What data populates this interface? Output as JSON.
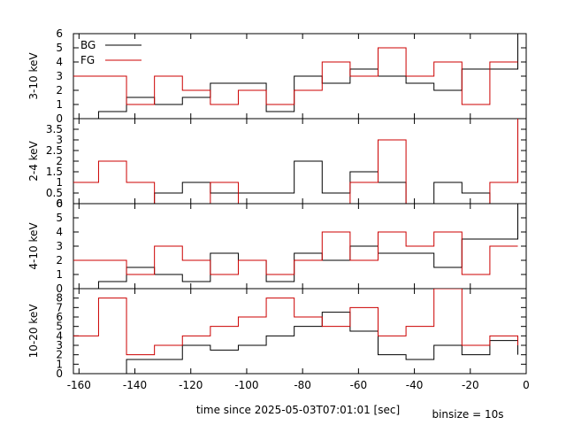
{
  "chart_data": {
    "type": "line",
    "step": true,
    "xlabel": "time since 2025-05-03T07:01:01 [sec]",
    "note": "binsize = 10s",
    "xlim": [
      -162,
      0
    ],
    "xticks": [
      -160,
      -140,
      -120,
      -100,
      -80,
      -60,
      -40,
      -20,
      0
    ],
    "bin_edges": [
      -163,
      -153,
      -143,
      -133,
      -123,
      -113,
      -103,
      -93,
      -83,
      -73,
      -63,
      -53,
      -43,
      -33,
      -23,
      -13,
      -3
    ],
    "legend": {
      "placement": "top-left",
      "entries": [
        "BG",
        "FG"
      ]
    },
    "colors": {
      "BG": "#000000",
      "FG": "#cc0000"
    },
    "panels": [
      {
        "ylabel": "3-10 keV",
        "ylim": [
          0,
          6
        ],
        "yticks": [
          0,
          1,
          2,
          3,
          4,
          5,
          6
        ],
        "series": [
          {
            "name": "BG",
            "values": [
              0,
              0.5,
              1.5,
              1,
              1.5,
              2.5,
              2.5,
              0.5,
              3,
              2.5,
              3.5,
              3,
              2.5,
              2,
              3.5,
              3.5
            ],
            "end": 6
          },
          {
            "name": "FG",
            "values": [
              3,
              3,
              1,
              3,
              2,
              1,
              2,
              1,
              2,
              4,
              3,
              5,
              3,
              4,
              1,
              4
            ]
          }
        ]
      },
      {
        "ylabel": "2-4 keV",
        "ylim": [
          0,
          4
        ],
        "yticks": [
          0,
          0.5,
          1,
          1.5,
          2,
          2.5,
          3,
          3.5
        ],
        "series": [
          {
            "name": "BG",
            "values": [
              0,
              0,
              0,
              0.5,
              1,
              0.5,
              0.5,
              0.5,
              2,
              0.5,
              1.5,
              1,
              0,
              1,
              0.5,
              0
            ]
          },
          {
            "name": "FG",
            "values": [
              1,
              2,
              1,
              0,
              0,
              1,
              0,
              0,
              0,
              0,
              1,
              3,
              0,
              0,
              0,
              1
            ],
            "end": 4
          }
        ]
      },
      {
        "ylabel": "4-10 keV",
        "ylim": [
          0,
          6
        ],
        "yticks": [
          0,
          1,
          2,
          3,
          4,
          5,
          6
        ],
        "series": [
          {
            "name": "BG",
            "values": [
              0,
              0.5,
              1.5,
              1,
              0.5,
              2.5,
              2,
              0.5,
              2.5,
              2,
              3,
              2.5,
              2.5,
              1.5,
              3.5,
              3.5
            ],
            "end": 6
          },
          {
            "name": "FG",
            "values": [
              2,
              2,
              1,
              3,
              2,
              1,
              2,
              1,
              2,
              4,
              2,
              4,
              3,
              4,
              1,
              3
            ]
          }
        ]
      },
      {
        "ylabel": "10-20 keV",
        "ylim": [
          0,
          9
        ],
        "yticks": [
          0,
          1,
          2,
          3,
          4,
          5,
          6,
          7,
          8
        ],
        "series": [
          {
            "name": "BG",
            "values": [
              0,
              0,
              1.5,
              1.5,
              3,
              2.5,
              3,
              4,
              5,
              6.5,
              4.5,
              2,
              1.5,
              3,
              2,
              3.5
            ],
            "end": 2
          },
          {
            "name": "FG",
            "values": [
              4,
              8,
              2,
              3,
              4,
              5,
              6,
              8,
              6,
              5,
              7,
              4,
              5,
              9,
              3,
              4
            ],
            "end": 3
          }
        ]
      }
    ]
  }
}
